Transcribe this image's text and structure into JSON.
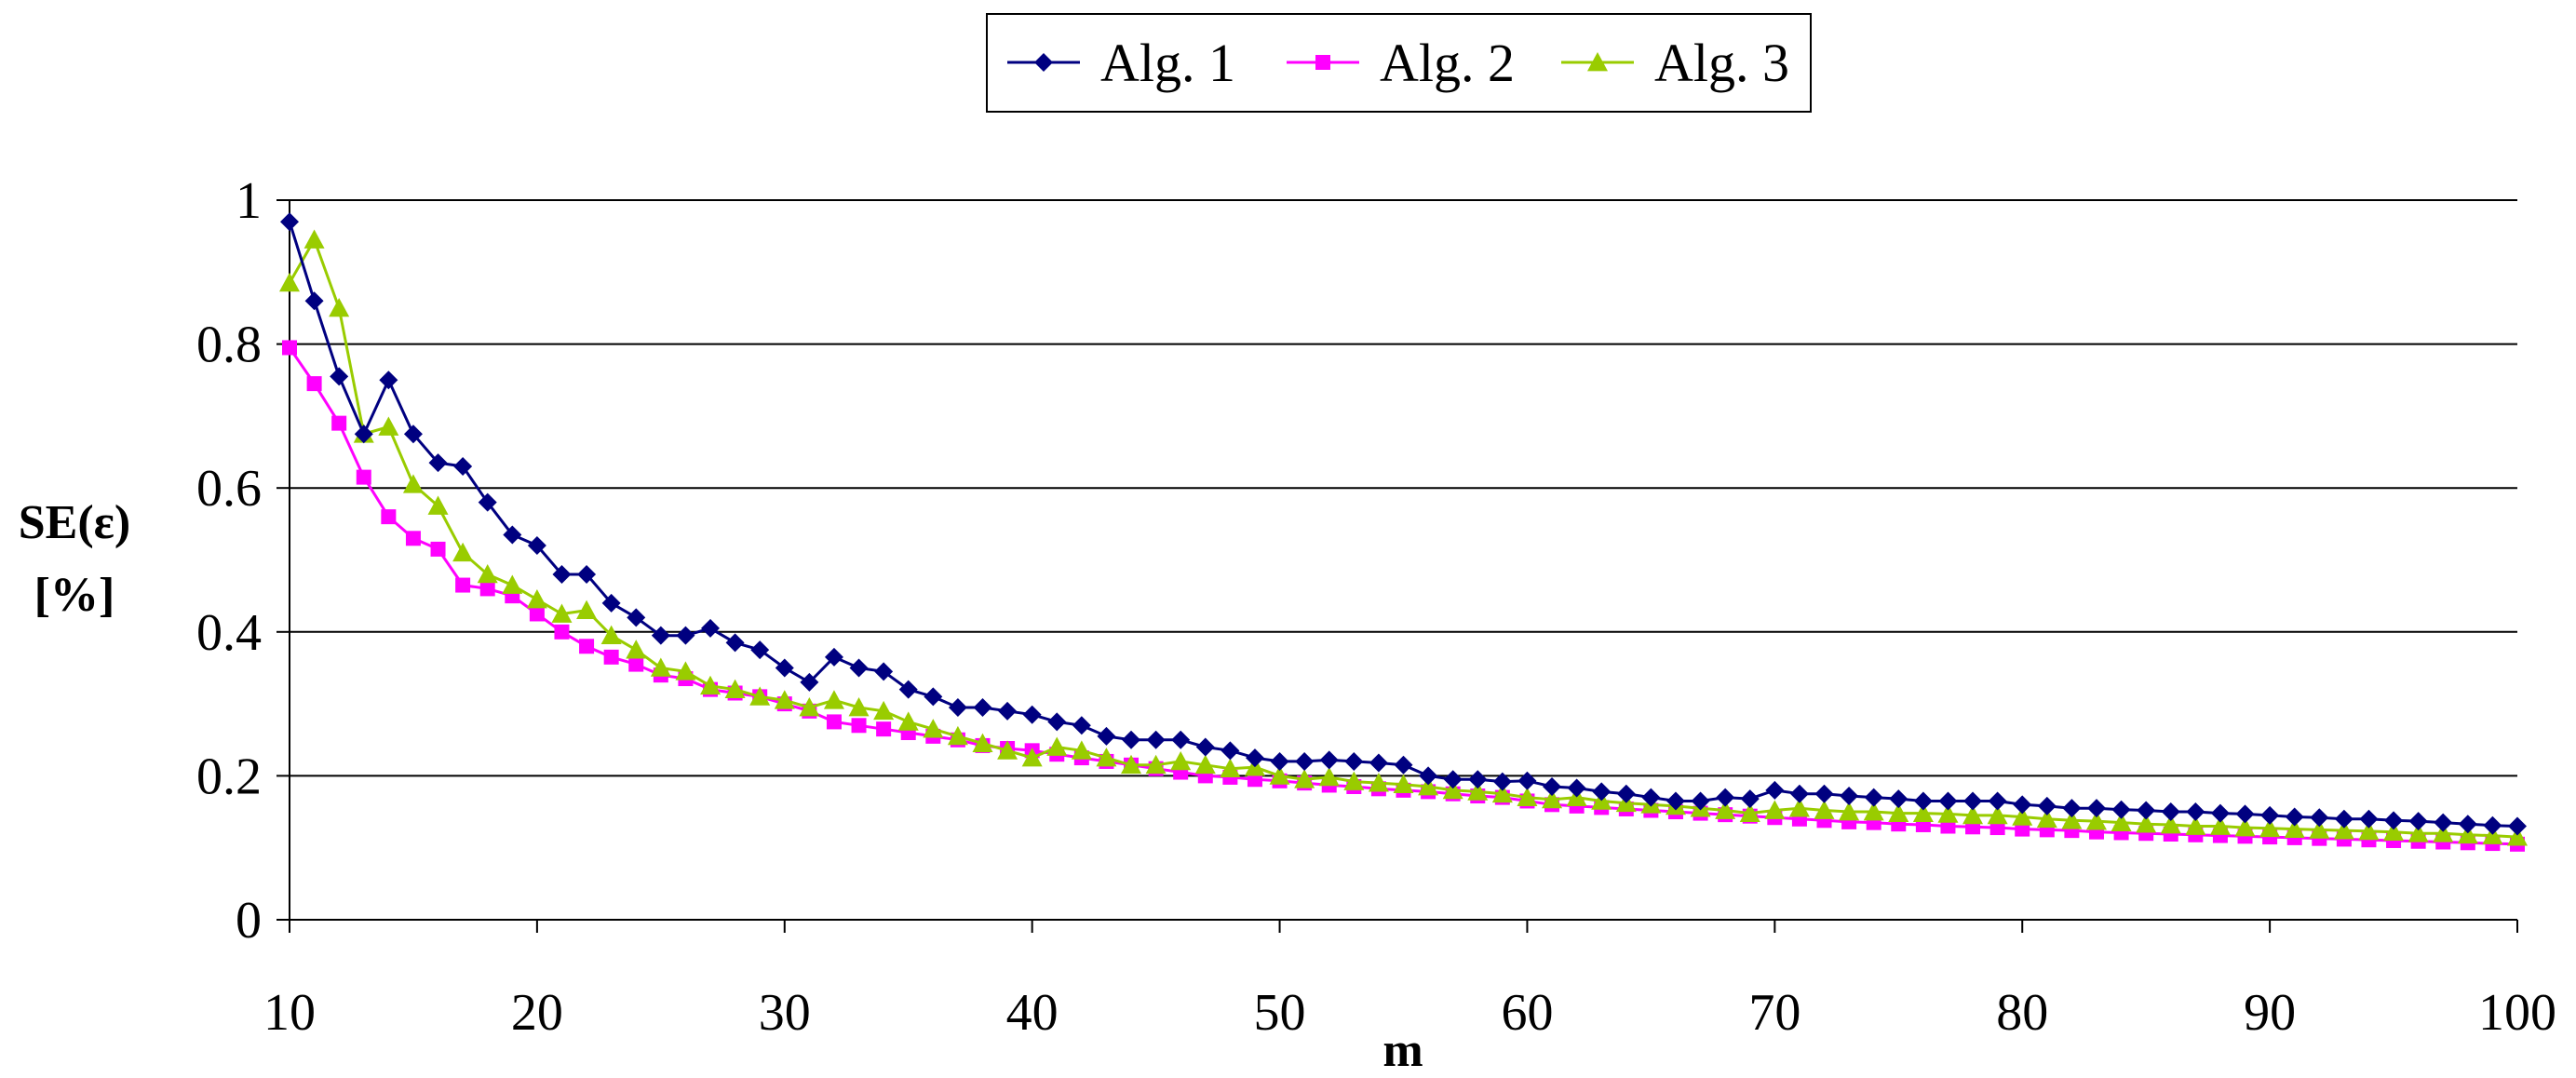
{
  "chart_data": {
    "type": "line",
    "title": "",
    "xlabel": "m",
    "ylabel_lines": [
      "SE(ε)",
      "[%]"
    ],
    "xlim": [
      10,
      100
    ],
    "ylim": [
      0,
      1
    ],
    "x_ticks": [
      10,
      20,
      30,
      40,
      50,
      60,
      70,
      80,
      90,
      100
    ],
    "x_tick_labels": [
      "10",
      "20",
      "30",
      "40",
      "50",
      "60",
      "70",
      "80",
      "90",
      "100"
    ],
    "y_ticks": [
      0,
      0.2,
      0.4,
      0.6,
      0.8,
      1
    ],
    "y_tick_labels": [
      "0",
      "0.2",
      "0.4",
      "0.6",
      "0.8",
      "1"
    ],
    "grid": "horizontal",
    "legend_position": "top-center",
    "x_start": 10,
    "x_step": 1,
    "series": [
      {
        "name": "Alg. 1",
        "color": "#000080",
        "marker": "diamond",
        "values": [
          0.97,
          0.86,
          0.755,
          0.675,
          0.75,
          0.675,
          0.635,
          0.63,
          0.58,
          0.535,
          0.52,
          0.48,
          0.48,
          0.44,
          0.42,
          0.395,
          0.395,
          0.405,
          0.385,
          0.375,
          0.35,
          0.33,
          0.365,
          0.35,
          0.345,
          0.32,
          0.31,
          0.295,
          0.295,
          0.29,
          0.285,
          0.275,
          0.27,
          0.255,
          0.25,
          0.25,
          0.25,
          0.24,
          0.235,
          0.225,
          0.22,
          0.22,
          0.222,
          0.22,
          0.218,
          0.215,
          0.2,
          0.195,
          0.195,
          0.192,
          0.193,
          0.185,
          0.183,
          0.178,
          0.175,
          0.17,
          0.165,
          0.165,
          0.17,
          0.168,
          0.18,
          0.175,
          0.175,
          0.172,
          0.17,
          0.168,
          0.165,
          0.165,
          0.165,
          0.165,
          0.16,
          0.158,
          0.155,
          0.155,
          0.153,
          0.152,
          0.15,
          0.15,
          0.148,
          0.147,
          0.145,
          0.143,
          0.142,
          0.14,
          0.14,
          0.138,
          0.137,
          0.135,
          0.133,
          0.131,
          0.13
        ]
      },
      {
        "name": "Alg. 2",
        "color": "#FF00FF",
        "marker": "square",
        "values": [
          0.795,
          0.745,
          0.69,
          0.615,
          0.56,
          0.53,
          0.515,
          0.465,
          0.46,
          0.45,
          0.425,
          0.4,
          0.38,
          0.365,
          0.355,
          0.34,
          0.335,
          0.32,
          0.315,
          0.31,
          0.3,
          0.29,
          0.275,
          0.27,
          0.265,
          0.26,
          0.255,
          0.25,
          0.242,
          0.238,
          0.235,
          0.23,
          0.225,
          0.22,
          0.215,
          0.21,
          0.205,
          0.2,
          0.198,
          0.195,
          0.193,
          0.19,
          0.187,
          0.185,
          0.182,
          0.18,
          0.178,
          0.175,
          0.172,
          0.17,
          0.165,
          0.16,
          0.158,
          0.156,
          0.154,
          0.152,
          0.15,
          0.148,
          0.146,
          0.144,
          0.142,
          0.14,
          0.138,
          0.136,
          0.135,
          0.133,
          0.132,
          0.13,
          0.129,
          0.128,
          0.126,
          0.125,
          0.124,
          0.122,
          0.121,
          0.12,
          0.119,
          0.118,
          0.117,
          0.116,
          0.115,
          0.114,
          0.113,
          0.112,
          0.111,
          0.11,
          0.109,
          0.108,
          0.107,
          0.106,
          0.105
        ]
      },
      {
        "name": "Alg. 3",
        "color": "#99CC00",
        "marker": "triangle",
        "values": [
          0.885,
          0.945,
          0.85,
          0.675,
          0.685,
          0.605,
          0.575,
          0.51,
          0.48,
          0.465,
          0.445,
          0.425,
          0.43,
          0.395,
          0.375,
          0.35,
          0.345,
          0.325,
          0.32,
          0.31,
          0.305,
          0.295,
          0.305,
          0.295,
          0.29,
          0.275,
          0.265,
          0.255,
          0.245,
          0.235,
          0.225,
          0.24,
          0.235,
          0.225,
          0.215,
          0.215,
          0.22,
          0.215,
          0.21,
          0.212,
          0.2,
          0.195,
          0.198,
          0.192,
          0.19,
          0.188,
          0.185,
          0.18,
          0.178,
          0.175,
          0.17,
          0.167,
          0.17,
          0.165,
          0.162,
          0.16,
          0.158,
          0.155,
          0.152,
          0.148,
          0.152,
          0.155,
          0.152,
          0.15,
          0.15,
          0.148,
          0.148,
          0.147,
          0.145,
          0.145,
          0.143,
          0.14,
          0.138,
          0.137,
          0.135,
          0.133,
          0.132,
          0.13,
          0.13,
          0.128,
          0.127,
          0.126,
          0.125,
          0.124,
          0.123,
          0.122,
          0.12,
          0.12,
          0.118,
          0.117,
          0.115
        ]
      }
    ]
  }
}
